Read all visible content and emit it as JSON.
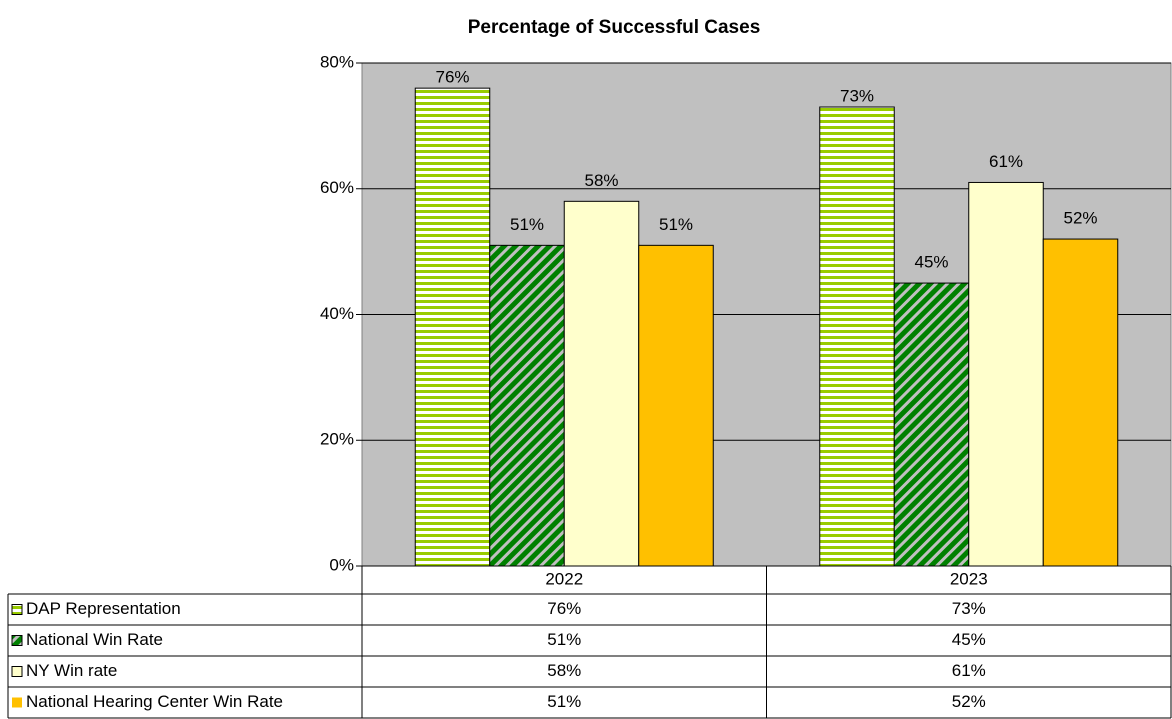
{
  "chart_data": {
    "type": "bar",
    "title": "Percentage of Successful Cases",
    "categories": [
      "2022",
      "2023"
    ],
    "series": [
      {
        "name": "DAP Representation",
        "color": "#99cc00",
        "values": [
          76,
          73
        ],
        "value_labels": [
          "76%",
          "73%"
        ]
      },
      {
        "name": "National Win Rate",
        "color": "#008000",
        "values": [
          51,
          45
        ],
        "value_labels": [
          "51%",
          "45%"
        ]
      },
      {
        "name": "NY Win rate",
        "color": "#ffffcc",
        "values": [
          58,
          61
        ],
        "value_labels": [
          "58%",
          "61%"
        ]
      },
      {
        "name": "National Hearing Center Win Rate",
        "color": "#ffc000",
        "values": [
          51,
          52
        ],
        "value_labels": [
          "51%",
          "52%"
        ]
      }
    ],
    "ylim": [
      0,
      80
    ],
    "yticks": [
      {
        "value": 0,
        "label": "0%"
      },
      {
        "value": 20,
        "label": "20%"
      },
      {
        "value": 40,
        "label": "40%"
      },
      {
        "value": 60,
        "label": "60%"
      },
      {
        "value": 80,
        "label": "80%"
      }
    ],
    "grid": true
  }
}
